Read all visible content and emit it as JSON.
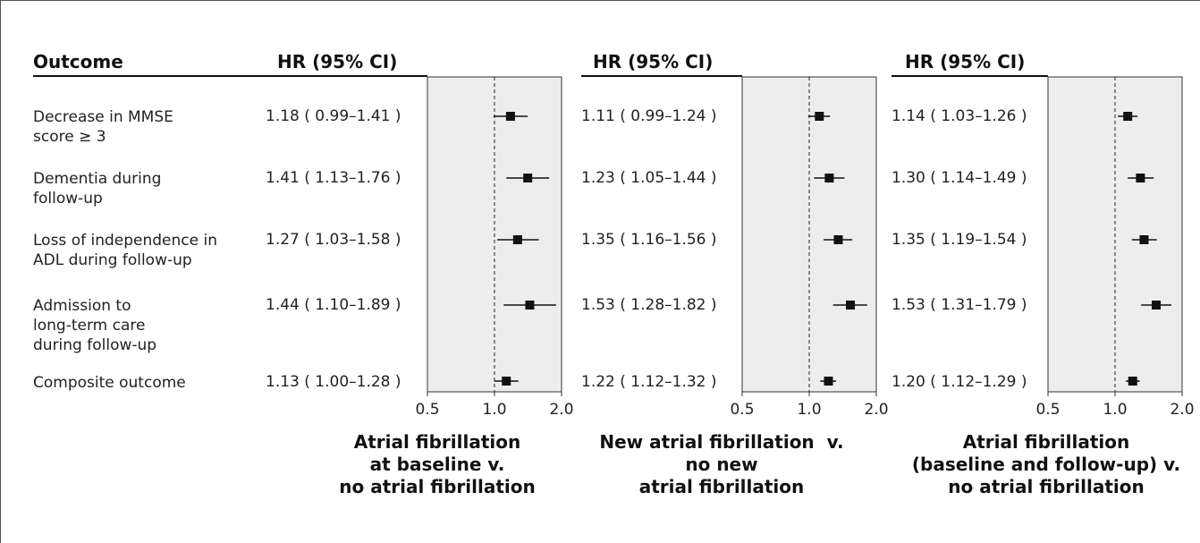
{
  "header": {
    "outcome_label": "Outcome",
    "hr_label": "HR (95% CI)"
  },
  "chart_data": {
    "type": "forest",
    "scale": "log",
    "xlim": [
      0.5,
      2.0
    ],
    "reference_line": 1.0,
    "ticks": [
      "0.5",
      "1.0",
      "2.0"
    ],
    "outcomes": [
      {
        "lines": [
          "Decrease in MMSE",
          "score ≥ 3"
        ]
      },
      {
        "lines": [
          "Dementia during",
          "follow-up"
        ]
      },
      {
        "lines": [
          "Loss of independence in",
          "ADL during follow-up"
        ]
      },
      {
        "lines": [
          "Admission to",
          "long-term care",
          "during follow-up"
        ]
      },
      {
        "lines": [
          "Composite outcome"
        ]
      }
    ],
    "panels": [
      {
        "title_lines": [
          "Atrial fibrillation",
          "at baseline v.",
          "no atrial fibrillation"
        ],
        "rows": [
          {
            "text": "1.18 ( 0.99–1.41 )",
            "hr": 1.18,
            "lo": 0.99,
            "hi": 1.41
          },
          {
            "text": "1.41 ( 1.13–1.76 )",
            "hr": 1.41,
            "lo": 1.13,
            "hi": 1.76
          },
          {
            "text": "1.27 ( 1.03–1.58 )",
            "hr": 1.27,
            "lo": 1.03,
            "hi": 1.58
          },
          {
            "text": "1.44 ( 1.10–1.89 )",
            "hr": 1.44,
            "lo": 1.1,
            "hi": 1.89
          },
          {
            "text": "1.13 ( 1.00–1.28 )",
            "hr": 1.13,
            "lo": 1.0,
            "hi": 1.28
          }
        ]
      },
      {
        "title_lines": [
          "New atrial fibrillation  v.",
          "no new",
          "atrial fibrillation"
        ],
        "rows": [
          {
            "text": "1.11 ( 0.99–1.24 )",
            "hr": 1.11,
            "lo": 0.99,
            "hi": 1.24
          },
          {
            "text": "1.23 ( 1.05–1.44 )",
            "hr": 1.23,
            "lo": 1.05,
            "hi": 1.44
          },
          {
            "text": "1.35 ( 1.16–1.56 )",
            "hr": 1.35,
            "lo": 1.16,
            "hi": 1.56
          },
          {
            "text": "1.53 ( 1.28–1.82 )",
            "hr": 1.53,
            "lo": 1.28,
            "hi": 1.82
          },
          {
            "text": "1.22 ( 1.12–1.32 )",
            "hr": 1.22,
            "lo": 1.12,
            "hi": 1.32
          }
        ]
      },
      {
        "title_lines": [
          "Atrial fibrillation",
          "(baseline and follow-up) v.",
          "no atrial fibrillation"
        ],
        "rows": [
          {
            "text": "1.14 ( 1.03–1.26 )",
            "hr": 1.14,
            "lo": 1.03,
            "hi": 1.26
          },
          {
            "text": "1.30 ( 1.14–1.49 )",
            "hr": 1.3,
            "lo": 1.14,
            "hi": 1.49
          },
          {
            "text": "1.35 ( 1.19–1.54 )",
            "hr": 1.35,
            "lo": 1.19,
            "hi": 1.54
          },
          {
            "text": "1.53 ( 1.31–1.79 )",
            "hr": 1.53,
            "lo": 1.31,
            "hi": 1.79
          },
          {
            "text": "1.20 ( 1.12–1.29 )",
            "hr": 1.2,
            "lo": 1.12,
            "hi": 1.29
          }
        ]
      }
    ]
  }
}
